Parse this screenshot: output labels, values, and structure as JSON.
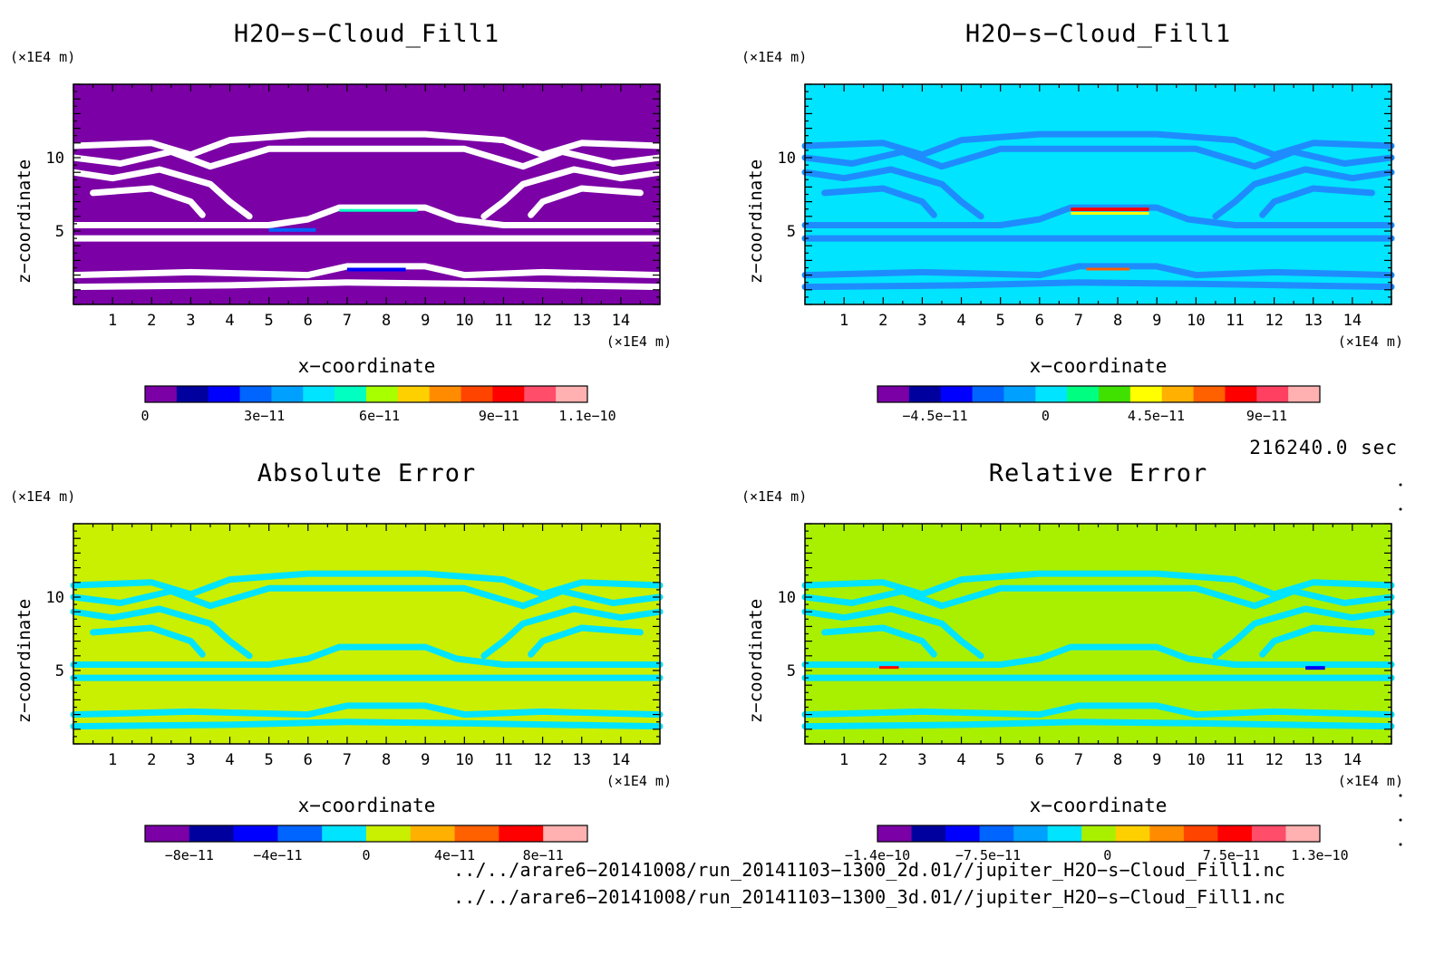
{
  "panels": [
    {
      "title": "H2O−s−Cloud_Fill1",
      "xlabel": "x−coordinate",
      "ylabel": "z−coordinate",
      "xunit": "(×1E4 m)",
      "yunit": "(×1E4 m)",
      "bg_color": "#7b00a6",
      "contour_color": "#ffffff",
      "colorbar_colors": [
        "#7b00a6",
        "#00009e",
        "#0000ff",
        "#0064ff",
        "#00a0ff",
        "#00e4ff",
        "#00ffc0",
        "#a8ff00",
        "#ffd000",
        "#ff8c00",
        "#ff4400",
        "#ff0000",
        "#ff4d6a",
        "#ffb0b0"
      ],
      "colorbar_labels": [
        {
          "text": "0",
          "value": 0
        },
        {
          "text": "3e−11",
          "value": 3e-11
        },
        {
          "text": "6e−11",
          "value": 6e-11
        },
        {
          "text": "9e−11",
          "value": 9e-11
        },
        {
          "text": "1.1e−10",
          "value": 1.1e-10
        }
      ]
    },
    {
      "title": "H2O−s−Cloud_Fill1",
      "xlabel": "x−coordinate",
      "ylabel": "z−coordinate",
      "xunit": "(×1E4 m)",
      "yunit": "(×1E4 m)",
      "bg_color": "#00e4ff",
      "contour_color": "#1e8cff",
      "colorbar_colors": [
        "#7b00a6",
        "#00009e",
        "#0000ff",
        "#0064ff",
        "#00a0ff",
        "#00e4ff",
        "#00ff80",
        "#40e000",
        "#ffff00",
        "#ffb000",
        "#ff6000",
        "#ff0000",
        "#ff4060",
        "#ffb0b0"
      ],
      "colorbar_labels": [
        {
          "text": "−4.5e−11",
          "value": -4.5e-11
        },
        {
          "text": "0",
          "value": 0
        },
        {
          "text": "4.5e−11",
          "value": 4.5e-11
        },
        {
          "text": "9e−11",
          "value": 9e-11
        }
      ]
    },
    {
      "title": "Absolute Error",
      "xlabel": "x−coordinate",
      "ylabel": "z−coordinate",
      "xunit": "(×1E4 m)",
      "yunit": "(×1E4 m)",
      "bg_color": "#c8f000",
      "contour_color": "#00e4ff",
      "colorbar_colors": [
        "#7b00a6",
        "#00009e",
        "#0000ff",
        "#0064ff",
        "#00e4ff",
        "#c8f000",
        "#ffb000",
        "#ff6000",
        "#ff0000",
        "#ffb0b0"
      ],
      "colorbar_labels": [
        {
          "text": "−8e−11",
          "value": -8e-11
        },
        {
          "text": "−4e−11",
          "value": -4e-11
        },
        {
          "text": "0",
          "value": 0
        },
        {
          "text": "4e−11",
          "value": 4e-11
        },
        {
          "text": "8e−11",
          "value": 8e-11
        }
      ]
    },
    {
      "title": "Relative Error",
      "xlabel": "x−coordinate",
      "ylabel": "z−coordinate",
      "xunit": "(×1E4 m)",
      "yunit": "(×1E4 m)",
      "bg_color": "#a8f000",
      "contour_color": "#00e4ff",
      "colorbar_colors": [
        "#7b00a6",
        "#00009e",
        "#0000ff",
        "#0064ff",
        "#00a0ff",
        "#00e4ff",
        "#a8f000",
        "#ffd000",
        "#ff8c00",
        "#ff4400",
        "#ff0000",
        "#ff4d6a",
        "#ffb0b0"
      ],
      "colorbar_labels": [
        {
          "text": "−1.4e−10",
          "value": -1.4e-10
        },
        {
          "text": "−7.5e−11",
          "value": -7.5e-11
        },
        {
          "text": "0",
          "value": 0
        },
        {
          "text": "7.5e−11",
          "value": 7.5e-11
        },
        {
          "text": "1.3e−10",
          "value": 1.3e-10
        }
      ]
    }
  ],
  "chart_data": {
    "type": "heatmap",
    "x_ticks": [
      1,
      2,
      3,
      4,
      5,
      6,
      7,
      8,
      9,
      10,
      11,
      12,
      13,
      14
    ],
    "z_ticks": [
      5,
      10
    ],
    "xlim": [
      0,
      15
    ],
    "zlim": [
      0,
      15
    ],
    "grid": false
  },
  "timestamp": "216240.0 sec",
  "files": [
    "../../arare6−20141008/run_20141103−1300_2d.01//jupiter_H2O−s−Cloud_Fill1.nc",
    "../../arare6−20141008/run_20141103−1300_3d.01//jupiter_H2O−s−Cloud_Fill1.nc"
  ]
}
